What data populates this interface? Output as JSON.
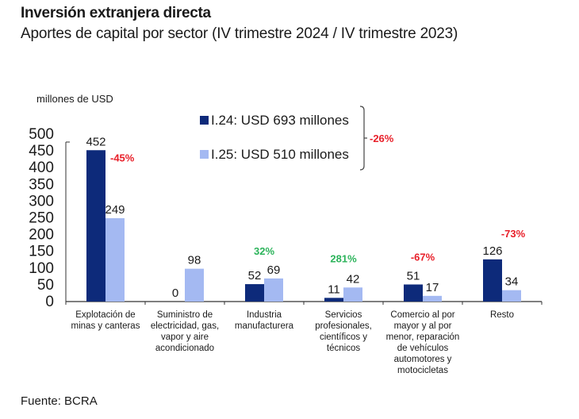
{
  "header": {
    "title": "Inversión extranjera directa",
    "subtitle": "Aportes de capital por sector (IV trimestre 2024 / IV trimestre 2023)"
  },
  "footer": {
    "source": "Fuente: BCRA"
  },
  "colors": {
    "series_2024": "#0d2a7a",
    "series_2025": "#a4b9f2",
    "negative": "#e8202a",
    "positive": "#2bb35a"
  },
  "chart_data": {
    "type": "bar",
    "title": "Inversión extranjera directa",
    "subtitle": "Aportes de capital por sector (IV trimestre 2024 / IV trimestre 2023)",
    "xlabel": "",
    "ylabel": "millones de USD",
    "ylim": [
      0,
      500
    ],
    "yticks": [
      0,
      50,
      100,
      150,
      200,
      250,
      300,
      350,
      400,
      450,
      500
    ],
    "grid": false,
    "legend_position": "top-center",
    "categories": [
      [
        "Explotación de",
        "minas y canteras"
      ],
      [
        "Suministro de",
        "electricidad, gas,",
        "vapor y aire",
        "acondicionado"
      ],
      [
        "Industria",
        "manufacturera"
      ],
      [
        "Servicios",
        "profesionales,",
        "científicos y",
        "técnicos"
      ],
      [
        "Comercio al por",
        "mayor y al por",
        "menor, reparación",
        "de vehículos",
        "automotores y",
        "motocicletas"
      ],
      [
        "Resto"
      ]
    ],
    "series": [
      {
        "name": "I.24: USD 693 millones",
        "values": [
          452,
          0,
          52,
          11,
          51,
          126
        ]
      },
      {
        "name": "I.25: USD 510 millones",
        "values": [
          249,
          98,
          69,
          42,
          17,
          34
        ]
      }
    ],
    "changes": [
      {
        "label": "-45%",
        "sign": "negative"
      },
      {
        "label": "",
        "sign": "none"
      },
      {
        "label": "32%",
        "sign": "positive"
      },
      {
        "label": "281%",
        "sign": "positive"
      },
      {
        "label": "-67%",
        "sign": "negative"
      },
      {
        "label": "-73%",
        "sign": "negative"
      }
    ],
    "total_change": {
      "label": "-26%",
      "sign": "negative"
    }
  }
}
